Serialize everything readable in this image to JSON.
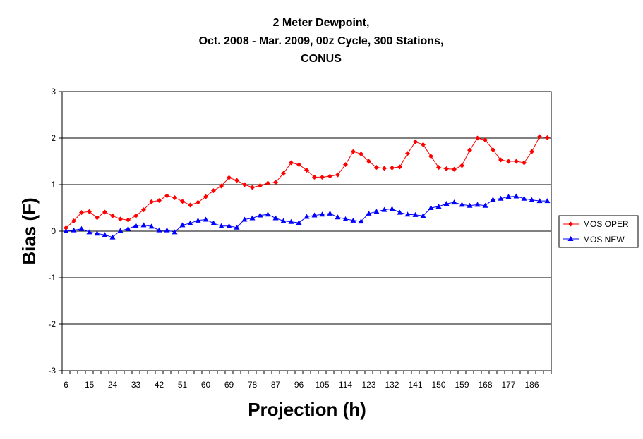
{
  "chart_data": {
    "type": "line",
    "title": [
      "2 Meter Dewpoint,",
      "Oct. 2008 - Mar. 2009, 00z Cycle, 300 Stations,",
      "CONUS"
    ],
    "xlabel": "Projection (h)",
    "ylabel": "Bias (F)",
    "ylim": [
      -3,
      3
    ],
    "yticks": [
      3,
      2,
      1,
      0,
      -1,
      -2,
      -3
    ],
    "x": [
      6,
      9,
      12,
      15,
      18,
      21,
      24,
      27,
      30,
      33,
      36,
      39,
      42,
      45,
      48,
      51,
      54,
      57,
      60,
      63,
      66,
      69,
      72,
      75,
      78,
      81,
      84,
      87,
      90,
      93,
      96,
      99,
      102,
      105,
      108,
      111,
      114,
      117,
      120,
      123,
      126,
      129,
      132,
      135,
      138,
      141,
      144,
      147,
      150,
      153,
      156,
      159,
      162,
      165,
      168,
      171,
      174,
      177,
      180,
      183,
      186,
      189,
      192
    ],
    "xtick_labels": [
      "6",
      "15",
      "24",
      "33",
      "42",
      "51",
      "60",
      "69",
      "78",
      "87",
      "96",
      "105",
      "114",
      "123",
      "132",
      "141",
      "150",
      "159",
      "168",
      "177",
      "186"
    ],
    "grid": "horizontal",
    "legend_position": "right",
    "series": [
      {
        "name": "MOS OPER",
        "color": "#ff0000",
        "marker": "diamond",
        "values": [
          0.07,
          0.22,
          0.4,
          0.42,
          0.29,
          0.41,
          0.33,
          0.26,
          0.24,
          0.33,
          0.46,
          0.63,
          0.66,
          0.76,
          0.72,
          0.64,
          0.56,
          0.62,
          0.74,
          0.87,
          0.97,
          1.15,
          1.09,
          1.0,
          0.94,
          0.98,
          1.03,
          1.05,
          1.24,
          1.47,
          1.43,
          1.31,
          1.16,
          1.16,
          1.18,
          1.21,
          1.43,
          1.71,
          1.66,
          1.5,
          1.37,
          1.35,
          1.36,
          1.38,
          1.67,
          1.92,
          1.86,
          1.61,
          1.37,
          1.34,
          1.33,
          1.41,
          1.74,
          2.0,
          1.96,
          1.75,
          1.53,
          1.5,
          1.5,
          1.47,
          1.71,
          2.03,
          2.01
        ]
      },
      {
        "name": "MOS NEW",
        "color": "#0000ff",
        "marker": "triangle",
        "values": [
          0.0,
          0.02,
          0.05,
          -0.02,
          -0.05,
          -0.08,
          -0.13,
          0.01,
          0.05,
          0.12,
          0.13,
          0.1,
          0.02,
          0.02,
          -0.02,
          0.13,
          0.17,
          0.23,
          0.25,
          0.17,
          0.11,
          0.11,
          0.08,
          0.25,
          0.28,
          0.34,
          0.36,
          0.28,
          0.22,
          0.2,
          0.18,
          0.31,
          0.34,
          0.36,
          0.38,
          0.3,
          0.26,
          0.23,
          0.21,
          0.38,
          0.42,
          0.46,
          0.48,
          0.4,
          0.36,
          0.35,
          0.33,
          0.5,
          0.53,
          0.59,
          0.62,
          0.57,
          0.55,
          0.57,
          0.55,
          0.68,
          0.7,
          0.74,
          0.75,
          0.7,
          0.67,
          0.65,
          0.65
        ]
      }
    ]
  }
}
